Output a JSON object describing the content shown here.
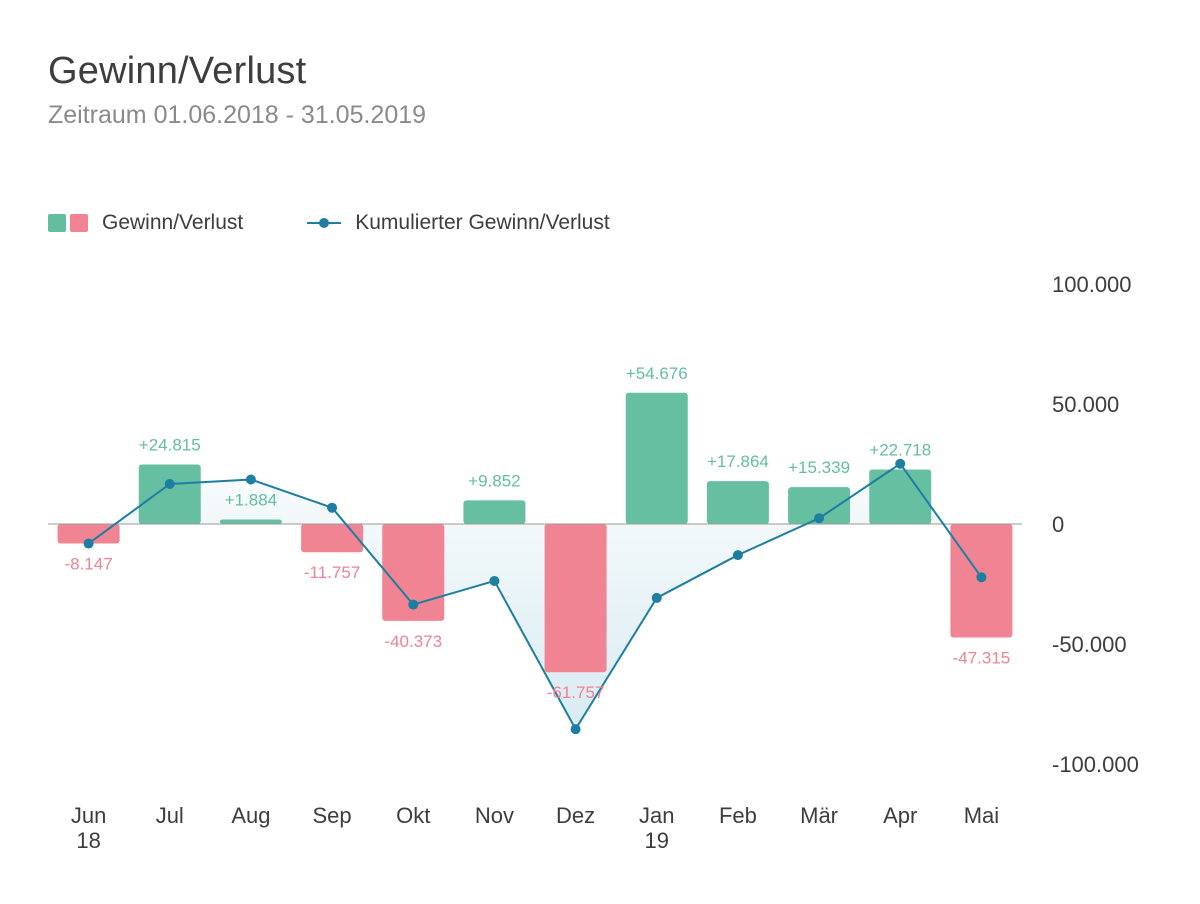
{
  "header": {
    "title": "Gewinn/Verlust",
    "subtitle": "Zeitraum 01.06.2018 - 31.05.2019"
  },
  "legend": {
    "bars_label": "Gewinn/Verlust",
    "line_label": "Kumulierter Gewinn/Verlust"
  },
  "colors": {
    "positive": "#62be9e",
    "negative": "#f08291",
    "line": "#1d7ea1",
    "area_fill": "#cfe6ee",
    "zero_line": "#9a9a9a",
    "text": "#3d3d3d"
  },
  "chart_data": {
    "type": "bar",
    "title": "Gewinn/Verlust",
    "subtitle": "Zeitraum 01.06.2018 - 31.05.2019",
    "categories": [
      "Jun",
      "Jul",
      "Aug",
      "Sep",
      "Okt",
      "Nov",
      "Dez",
      "Jan",
      "Feb",
      "Mär",
      "Apr",
      "Mai"
    ],
    "category_sublabels": [
      "18",
      "",
      "",
      "",
      "",
      "",
      "",
      "19",
      "",
      "",
      "",
      ""
    ],
    "series": [
      {
        "name": "Gewinn/Verlust",
        "type": "bar",
        "values": [
          -8147,
          24815,
          1884,
          -11757,
          -40373,
          9852,
          -61757,
          54676,
          17864,
          15339,
          22718,
          -47315
        ],
        "labels": [
          "-8.147",
          "+24.815",
          "+1.884",
          "-11.757",
          "-40.373",
          "+9.852",
          "-61.757",
          "+54.676",
          "+17.864",
          "+15.339",
          "+22.718",
          "-47.315"
        ]
      },
      {
        "name": "Kumulierter Gewinn/Verlust",
        "type": "line",
        "values": [
          -8147,
          16668,
          18552,
          6795,
          -33578,
          -23726,
          -85483,
          -30807,
          -12943,
          2396,
          25114,
          -22201
        ]
      }
    ],
    "y_ticks": [
      100000,
      50000,
      0,
      -50000,
      -100000
    ],
    "y_tick_labels": [
      "100.000",
      "50.000",
      "0",
      "-50.000",
      "-100.000"
    ],
    "ylim": [
      -100000,
      100000
    ],
    "y_axis_position": "right",
    "grid": false,
    "legend_position": "top-left"
  }
}
